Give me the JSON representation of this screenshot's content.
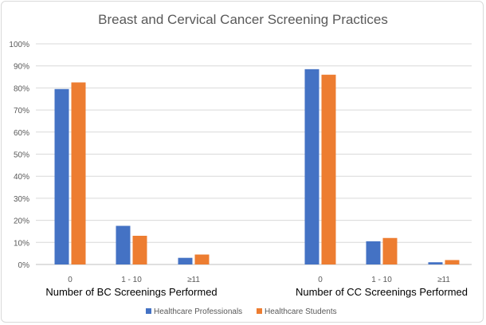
{
  "chart_data": {
    "type": "bar",
    "title": "Breast and Cervical Cancer Screening Practices",
    "ylim": [
      0,
      100
    ],
    "y_ticks": [
      "0%",
      "10%",
      "20%",
      "30%",
      "40%",
      "50%",
      "60%",
      "70%",
      "80%",
      "90%",
      "100%"
    ],
    "grid": true,
    "legend_position": "bottom",
    "colors": {
      "Healthcare Professionals": "#4472c4",
      "Healthcare Students": "#ed7d31"
    },
    "groups": [
      {
        "label": "Number of BC Screenings Performed",
        "categories": [
          "0",
          "1 - 10",
          "≥11"
        ],
        "series": [
          {
            "name": "Healthcare Professionals",
            "values": [
              79.5,
              17.5,
              3
            ]
          },
          {
            "name": "Healthcare Students",
            "values": [
              82.5,
              13,
              4.5
            ]
          }
        ]
      },
      {
        "label": "Number of CC Screenings Performed",
        "categories": [
          "0",
          "1 - 10",
          "≥11"
        ],
        "series": [
          {
            "name": "Healthcare Professionals",
            "values": [
              88.5,
              10.5,
              1
            ]
          },
          {
            "name": "Healthcare Students",
            "values": [
              86,
              12,
              2
            ]
          }
        ]
      }
    ]
  }
}
